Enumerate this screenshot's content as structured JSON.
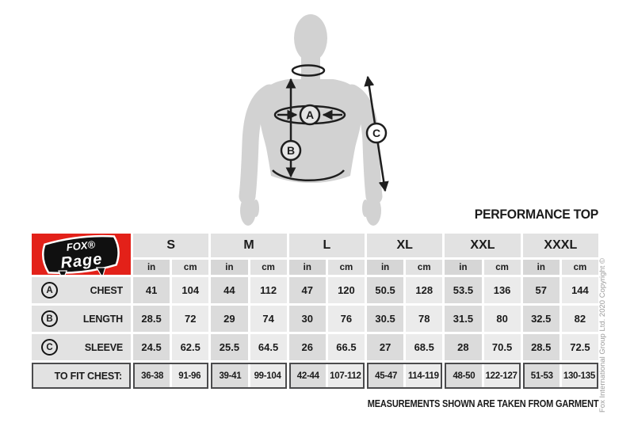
{
  "title": "PERFORMANCE TOP",
  "footer": "MEASUREMENTS SHOWN ARE TAKEN FROM GARMENT",
  "copyright": "Fox International Group Ltd. 2020 Copyright ©",
  "logo": {
    "fox": "FOX®",
    "rage": "Rage"
  },
  "diagram": {
    "markers": [
      "A",
      "B",
      "C"
    ]
  },
  "table": {
    "sizes": [
      "S",
      "M",
      "L",
      "XL",
      "XXL",
      "XXXL"
    ],
    "unit_headers": [
      "in",
      "cm"
    ],
    "rows": [
      {
        "marker": "A",
        "label": "CHEST",
        "values": [
          "41",
          "104",
          "44",
          "112",
          "47",
          "120",
          "50.5",
          "128",
          "53.5",
          "136",
          "57",
          "144"
        ]
      },
      {
        "marker": "B",
        "label": "LENGTH",
        "values": [
          "28.5",
          "72",
          "29",
          "74",
          "30",
          "76",
          "30.5",
          "78",
          "31.5",
          "80",
          "32.5",
          "82"
        ]
      },
      {
        "marker": "C",
        "label": "SLEEVE",
        "values": [
          "24.5",
          "62.5",
          "25.5",
          "64.5",
          "26",
          "66.5",
          "27",
          "68.5",
          "28",
          "70.5",
          "28.5",
          "72.5"
        ]
      }
    ],
    "fit_row": {
      "label": "TO FIT CHEST:",
      "values": [
        "36-38",
        "91-96",
        "39-41",
        "99-104",
        "42-44",
        "107-112",
        "45-47",
        "114-119",
        "48-50",
        "122-127",
        "51-53",
        "130-135"
      ]
    }
  },
  "colors": {
    "brand_red": "#e32119",
    "silhouette_gray": "#d2d2d2",
    "cell_dark_gray": "#dbdbdb",
    "cell_light_gray": "#ebebeb",
    "header_gray": "#e2e2e2",
    "fit_border": "#4b4b4d",
    "text": "#1b1b1b",
    "copyright_gray": "#9c9c9c"
  }
}
